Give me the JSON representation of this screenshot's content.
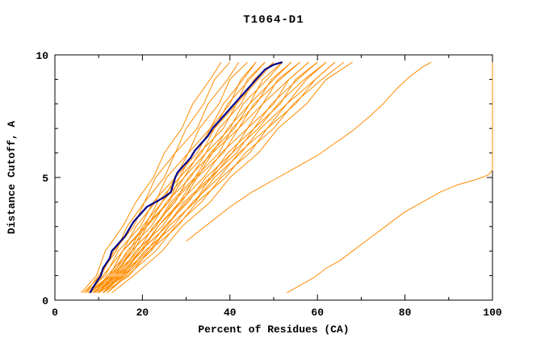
{
  "chart_data": {
    "type": "line",
    "title": "T1064-D1",
    "xlabel": "Percent of Residues (CA)",
    "ylabel": "Distance Cutoff, A",
    "xlim": [
      0,
      100
    ],
    "ylim": [
      0,
      10
    ],
    "x_ticks_major": [
      0,
      20,
      40,
      60,
      80,
      100
    ],
    "x_ticks_minor": [
      10,
      30,
      50,
      70,
      90
    ],
    "y_ticks_major": [
      0,
      5,
      10
    ],
    "y_ticks_minor": [
      1,
      2,
      3,
      4,
      6,
      7,
      8,
      9
    ],
    "x_tick_labels": [
      "0",
      "20",
      "40",
      "60",
      "80",
      "100"
    ],
    "y_tick_labels": [
      "0",
      "5",
      "10"
    ],
    "legend_position": "none",
    "grid": false,
    "colors": {
      "model_line": "#ff8c00",
      "highlight_line": "#00008b",
      "axis": "#000000",
      "background": "#ffffff"
    },
    "y_sample": [
      0.3,
      1,
      2,
      3,
      4,
      5,
      6,
      7,
      8,
      9,
      9.7
    ],
    "model_lines_x_at_y": [
      [
        6,
        9.5,
        11.5,
        15.5,
        18.5,
        22.5,
        25,
        29,
        31.5,
        35.5,
        38
      ],
      [
        7,
        10,
        14,
        16.5,
        20.5,
        23,
        27.5,
        30,
        34,
        36.5,
        40
      ],
      [
        6.5,
        10.5,
        13.5,
        18,
        20.5,
        25,
        27.5,
        32.5,
        35,
        39.5,
        42
      ],
      [
        8,
        11,
        15.5,
        18.5,
        23,
        25.5,
        30.5,
        33,
        37.5,
        40,
        44
      ],
      [
        7,
        11.5,
        14.5,
        19.5,
        22.5,
        27.5,
        30.5,
        35.5,
        38.5,
        43,
        46
      ],
      [
        9,
        12,
        17,
        20,
        24.5,
        27.5,
        32.5,
        35.5,
        40,
        42.5,
        46
      ],
      [
        8,
        12.5,
        15.5,
        20.5,
        23.5,
        28.5,
        31.5,
        36.5,
        39.5,
        44.5,
        48
      ],
      [
        10,
        13,
        18,
        21,
        26,
        28.5,
        33.5,
        36.5,
        41.5,
        44,
        48
      ],
      [
        7.5,
        12.5,
        15.5,
        21,
        24.5,
        29.5,
        33,
        38.5,
        41.5,
        46.5,
        50
      ],
      [
        9,
        12.5,
        17.5,
        20.5,
        26,
        29.5,
        34.5,
        37.5,
        42.5,
        45.5,
        50
      ],
      [
        8,
        13,
        16.5,
        22,
        25.5,
        31,
        34.5,
        40,
        43,
        48.5,
        52
      ],
      [
        10,
        13.5,
        19,
        22.5,
        27.5,
        30.5,
        36,
        39.5,
        44.5,
        47.5,
        52
      ],
      [
        9,
        14,
        17.5,
        23,
        26.5,
        32,
        35.5,
        41,
        44.5,
        50,
        54
      ],
      [
        11,
        14.5,
        20,
        23.5,
        28.5,
        32,
        37.5,
        40.5,
        46,
        49.5,
        54
      ],
      [
        8.5,
        13.5,
        17.5,
        23,
        27,
        32.5,
        36,
        42,
        45.5,
        51.5,
        56
      ],
      [
        10,
        14,
        19.5,
        23.5,
        29,
        32.5,
        38.5,
        42,
        47.5,
        51,
        56
      ],
      [
        9,
        14.5,
        18.5,
        24.5,
        28.5,
        34,
        38,
        44,
        47.5,
        53.5,
        58
      ],
      [
        11,
        15,
        21,
        25,
        30.5,
        34.5,
        40.5,
        44,
        50,
        53.5,
        58
      ],
      [
        10,
        15.5,
        19.5,
        25.5,
        29.5,
        35.5,
        39.5,
        45.5,
        49.5,
        55.5,
        60
      ],
      [
        12,
        16,
        22,
        26,
        32,
        35.5,
        41.5,
        45.5,
        51.5,
        55,
        60
      ],
      [
        9.5,
        15,
        19.5,
        25.5,
        30,
        36,
        40.5,
        46.5,
        51,
        57,
        62
      ],
      [
        11,
        15.5,
        21.5,
        26,
        32,
        36.5,
        42.5,
        47,
        53,
        57.5,
        62
      ],
      [
        10,
        16,
        20.5,
        27,
        31.5,
        37.5,
        42,
        48.5,
        53,
        59.5,
        64
      ],
      [
        12,
        16.5,
        23,
        27.5,
        33.5,
        38,
        44.5,
        48.5,
        55,
        59.5,
        64
      ],
      [
        11,
        17,
        21.5,
        28,
        32.5,
        39,
        43.5,
        50,
        54.5,
        61,
        66
      ],
      [
        13,
        18,
        24.5,
        29,
        35.5,
        40,
        46.5,
        51,
        57.5,
        62,
        68
      ]
    ],
    "outlier_lines": [
      [
        [
          53,
          0.3
        ],
        [
          56,
          0.6
        ],
        [
          59,
          0.9
        ],
        [
          62,
          1.3
        ],
        [
          65,
          1.6
        ],
        [
          68,
          2.0
        ],
        [
          71,
          2.4
        ],
        [
          74,
          2.8
        ],
        [
          77,
          3.2
        ],
        [
          80,
          3.6
        ],
        [
          84,
          4.0
        ],
        [
          88,
          4.4
        ],
        [
          92,
          4.7
        ],
        [
          96,
          4.9
        ],
        [
          99,
          5.1
        ],
        [
          100,
          5.3
        ],
        [
          100,
          9.7
        ]
      ],
      [
        [
          30,
          2.4
        ],
        [
          35,
          3.1
        ],
        [
          40,
          3.8
        ],
        [
          45,
          4.4
        ],
        [
          50,
          4.9
        ],
        [
          55,
          5.4
        ],
        [
          60,
          5.9
        ],
        [
          64,
          6.4
        ],
        [
          68,
          6.9
        ],
        [
          72,
          7.5
        ],
        [
          75,
          8.0
        ],
        [
          78,
          8.6
        ],
        [
          81,
          9.1
        ],
        [
          84,
          9.5
        ],
        [
          86,
          9.7
        ]
      ]
    ],
    "highlight_line": [
      [
        8,
        0.3
      ],
      [
        9,
        0.6
      ],
      [
        10.5,
        1.0
      ],
      [
        11,
        1.3
      ],
      [
        12.5,
        1.7
      ],
      [
        13,
        2.0
      ],
      [
        14.5,
        2.3
      ],
      [
        16,
        2.6
      ],
      [
        17,
        2.9
      ],
      [
        18,
        3.2
      ],
      [
        19.5,
        3.5
      ],
      [
        21,
        3.8
      ],
      [
        23,
        4.0
      ],
      [
        25,
        4.2
      ],
      [
        26.5,
        4.4
      ],
      [
        27,
        4.7
      ],
      [
        27.5,
        5.0
      ],
      [
        28,
        5.2
      ],
      [
        29.5,
        5.5
      ],
      [
        31,
        5.8
      ],
      [
        32,
        6.1
      ],
      [
        33.5,
        6.4
      ],
      [
        35,
        6.7
      ],
      [
        36,
        7.0
      ],
      [
        37.5,
        7.3
      ],
      [
        39,
        7.6
      ],
      [
        40.5,
        7.9
      ],
      [
        42,
        8.2
      ],
      [
        43.5,
        8.5
      ],
      [
        45,
        8.8
      ],
      [
        46.5,
        9.1
      ],
      [
        48,
        9.4
      ],
      [
        50,
        9.6
      ],
      [
        52,
        9.7
      ]
    ]
  }
}
